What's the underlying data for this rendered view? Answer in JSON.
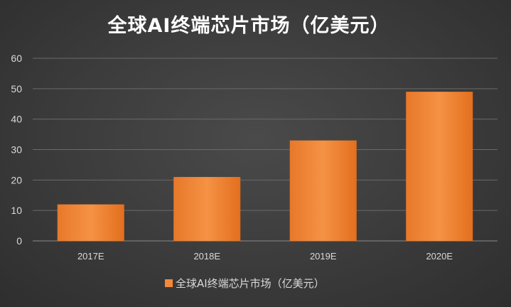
{
  "chart_data": {
    "type": "bar",
    "title": "全球AI终端芯片市场（亿美元）",
    "categories": [
      "2017E",
      "2018E",
      "2019E",
      "2020E"
    ],
    "series": [
      {
        "name": "全球AI终端芯片市场（亿美元）",
        "values": [
          12,
          21,
          33,
          49
        ]
      }
    ],
    "y_ticks": [
      "0",
      "10",
      "20",
      "30",
      "40",
      "50",
      "60"
    ],
    "ylim": [
      0,
      60
    ],
    "grid": true,
    "legend_position": "bottom",
    "colors": {
      "bar": "#f28a3a",
      "bar_dark": "#e0701d"
    }
  }
}
